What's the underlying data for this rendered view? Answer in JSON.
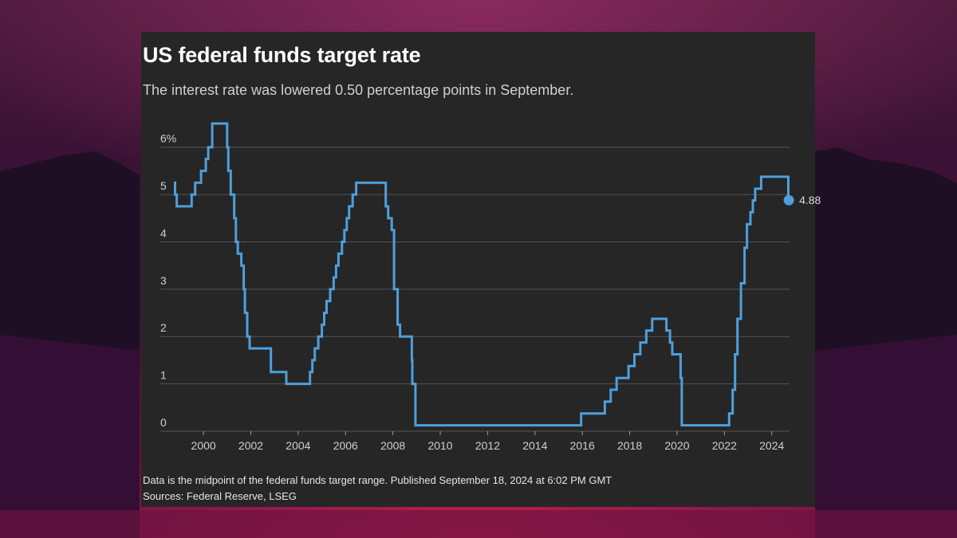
{
  "page": {
    "title": "US federal funds target rate",
    "subtitle": "The interest rate was lowered 0.50 percentage points in September.",
    "note": "Data is the midpoint of the federal funds target range. Published September 18, 2024 at 6:02 PM GMT",
    "source": "Sources: Federal Reserve, LSEG"
  },
  "colors": {
    "line": "#4e9fdc",
    "grid": "#555555",
    "card_background": "#262626"
  },
  "chart_data": {
    "type": "line",
    "step": true,
    "title": "US federal funds target rate",
    "subtitle": "The interest rate was lowered 0.50 percentage points in September.",
    "xlabel": "",
    "ylabel": "",
    "xlim": [
      1998.75,
      2024.75
    ],
    "ylim": [
      0,
      6.5
    ],
    "grid": "horizontal",
    "y_ticks": [
      {
        "value": 0,
        "label": "0"
      },
      {
        "value": 1,
        "label": "1"
      },
      {
        "value": 2,
        "label": "2"
      },
      {
        "value": 3,
        "label": "3"
      },
      {
        "value": 4,
        "label": "4"
      },
      {
        "value": 5,
        "label": "5"
      },
      {
        "value": 6,
        "label": "6%"
      }
    ],
    "x_ticks": [
      {
        "value": 2000,
        "label": "2000"
      },
      {
        "value": 2002,
        "label": "2002"
      },
      {
        "value": 2004,
        "label": "2004"
      },
      {
        "value": 2006,
        "label": "2006"
      },
      {
        "value": 2008,
        "label": "2008"
      },
      {
        "value": 2010,
        "label": "2010"
      },
      {
        "value": 2012,
        "label": "2012"
      },
      {
        "value": 2014,
        "label": "2014"
      },
      {
        "value": 2016,
        "label": "2016"
      },
      {
        "value": 2018,
        "label": "2018"
      },
      {
        "value": 2020,
        "label": "2020"
      },
      {
        "value": 2022,
        "label": "2022"
      },
      {
        "value": 2024,
        "label": "2024"
      }
    ],
    "series": [
      {
        "points": [
          [
            1998.75,
            5.25
          ],
          [
            1998.8,
            5.0
          ],
          [
            1998.87,
            4.75
          ],
          [
            1999.5,
            5.0
          ],
          [
            1999.65,
            5.25
          ],
          [
            1999.9,
            5.5
          ],
          [
            2000.1,
            5.75
          ],
          [
            2000.2,
            6.0
          ],
          [
            2000.37,
            6.5
          ],
          [
            2001.0,
            6.0
          ],
          [
            2001.05,
            5.5
          ],
          [
            2001.15,
            5.0
          ],
          [
            2001.3,
            4.5
          ],
          [
            2001.37,
            4.0
          ],
          [
            2001.45,
            3.75
          ],
          [
            2001.6,
            3.5
          ],
          [
            2001.7,
            3.0
          ],
          [
            2001.75,
            2.5
          ],
          [
            2001.85,
            2.0
          ],
          [
            2001.95,
            1.75
          ],
          [
            2002.85,
            1.25
          ],
          [
            2003.5,
            1.0
          ],
          [
            2004.5,
            1.25
          ],
          [
            2004.6,
            1.5
          ],
          [
            2004.7,
            1.75
          ],
          [
            2004.85,
            2.0
          ],
          [
            2005.0,
            2.25
          ],
          [
            2005.1,
            2.5
          ],
          [
            2005.2,
            2.75
          ],
          [
            2005.35,
            3.0
          ],
          [
            2005.5,
            3.25
          ],
          [
            2005.6,
            3.5
          ],
          [
            2005.7,
            3.75
          ],
          [
            2005.85,
            4.0
          ],
          [
            2005.95,
            4.25
          ],
          [
            2006.05,
            4.5
          ],
          [
            2006.15,
            4.75
          ],
          [
            2006.3,
            5.0
          ],
          [
            2006.45,
            5.25
          ],
          [
            2007.7,
            4.75
          ],
          [
            2007.8,
            4.5
          ],
          [
            2007.95,
            4.25
          ],
          [
            2008.05,
            3.0
          ],
          [
            2008.2,
            2.25
          ],
          [
            2008.3,
            2.0
          ],
          [
            2008.8,
            1.5
          ],
          [
            2008.82,
            1.0
          ],
          [
            2008.95,
            0.125
          ],
          [
            2015.95,
            0.375
          ],
          [
            2016.95,
            0.625
          ],
          [
            2017.2,
            0.875
          ],
          [
            2017.45,
            1.125
          ],
          [
            2017.95,
            1.375
          ],
          [
            2018.2,
            1.625
          ],
          [
            2018.45,
            1.875
          ],
          [
            2018.7,
            2.125
          ],
          [
            2018.95,
            2.375
          ],
          [
            2019.55,
            2.125
          ],
          [
            2019.7,
            1.875
          ],
          [
            2019.8,
            1.625
          ],
          [
            2020.15,
            1.125
          ],
          [
            2020.2,
            0.125
          ],
          [
            2022.2,
            0.375
          ],
          [
            2022.35,
            0.875
          ],
          [
            2022.45,
            1.625
          ],
          [
            2022.55,
            2.375
          ],
          [
            2022.7,
            3.125
          ],
          [
            2022.85,
            3.875
          ],
          [
            2022.95,
            4.375
          ],
          [
            2023.1,
            4.625
          ],
          [
            2023.2,
            4.875
          ],
          [
            2023.3,
            5.125
          ],
          [
            2023.55,
            5.375
          ],
          [
            2024.7,
            4.875
          ]
        ]
      }
    ],
    "annotations": [
      {
        "x": 2024.72,
        "y": 4.88,
        "label": "4.88"
      }
    ]
  }
}
